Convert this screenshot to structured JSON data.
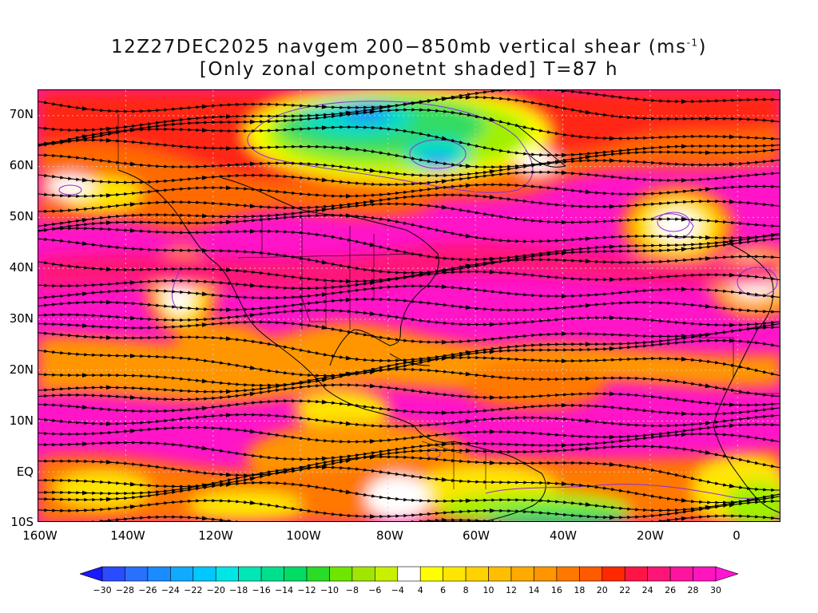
{
  "title": {
    "line1_prefix": "12Z27DEC2025 navgem 200−850mb vertical shear (ms",
    "line1_sup": "-1",
    "line1_suffix": ")",
    "line2": "[Only zonal componetnt shaded] T=87 h"
  },
  "axes": {
    "lat_labels": [
      "70N",
      "60N",
      "50N",
      "40N",
      "30N",
      "20N",
      "10N",
      "EQ",
      "10S"
    ],
    "lon_labels": [
      "160W",
      "140W",
      "120W",
      "100W",
      "80W",
      "60W",
      "40W",
      "20W",
      "0"
    ],
    "lat_range": [
      -10,
      75
    ],
    "lon_range": [
      -160,
      10
    ]
  },
  "colorbar": {
    "labels": [
      "−30",
      "−28",
      "−26",
      "−24",
      "−22",
      "−20",
      "−18",
      "−16",
      "−14",
      "−12",
      "−10",
      "−8",
      "−6",
      "−4",
      "4",
      "6",
      "8",
      "10",
      "12",
      "14",
      "16",
      "18",
      "20",
      "22",
      "24",
      "26",
      "28",
      "30"
    ],
    "colors": [
      "#1a1aff",
      "#2a4cff",
      "#2a70ff",
      "#1a8cff",
      "#10aaff",
      "#00c8ff",
      "#00e6e6",
      "#00e6b4",
      "#00e08c",
      "#00dc64",
      "#28dc28",
      "#6ee600",
      "#a0e600",
      "#c8f000",
      "#ffffff",
      "#ffff00",
      "#ffe600",
      "#ffd200",
      "#ffbe00",
      "#ffaa00",
      "#ff9600",
      "#ff7800",
      "#ff5a00",
      "#ff2800",
      "#ff1446",
      "#ff1478",
      "#ff14a0",
      "#ff14be",
      "#ff14d2"
    ]
  },
  "colors": {
    "magenta": "#ff14c8",
    "hot_pink": "#ff1478",
    "orange": "#ff8c00",
    "yellow": "#ffe600",
    "green": "#32dc32",
    "cyan": "#00dcc8",
    "blue": "#1e8cff"
  }
}
